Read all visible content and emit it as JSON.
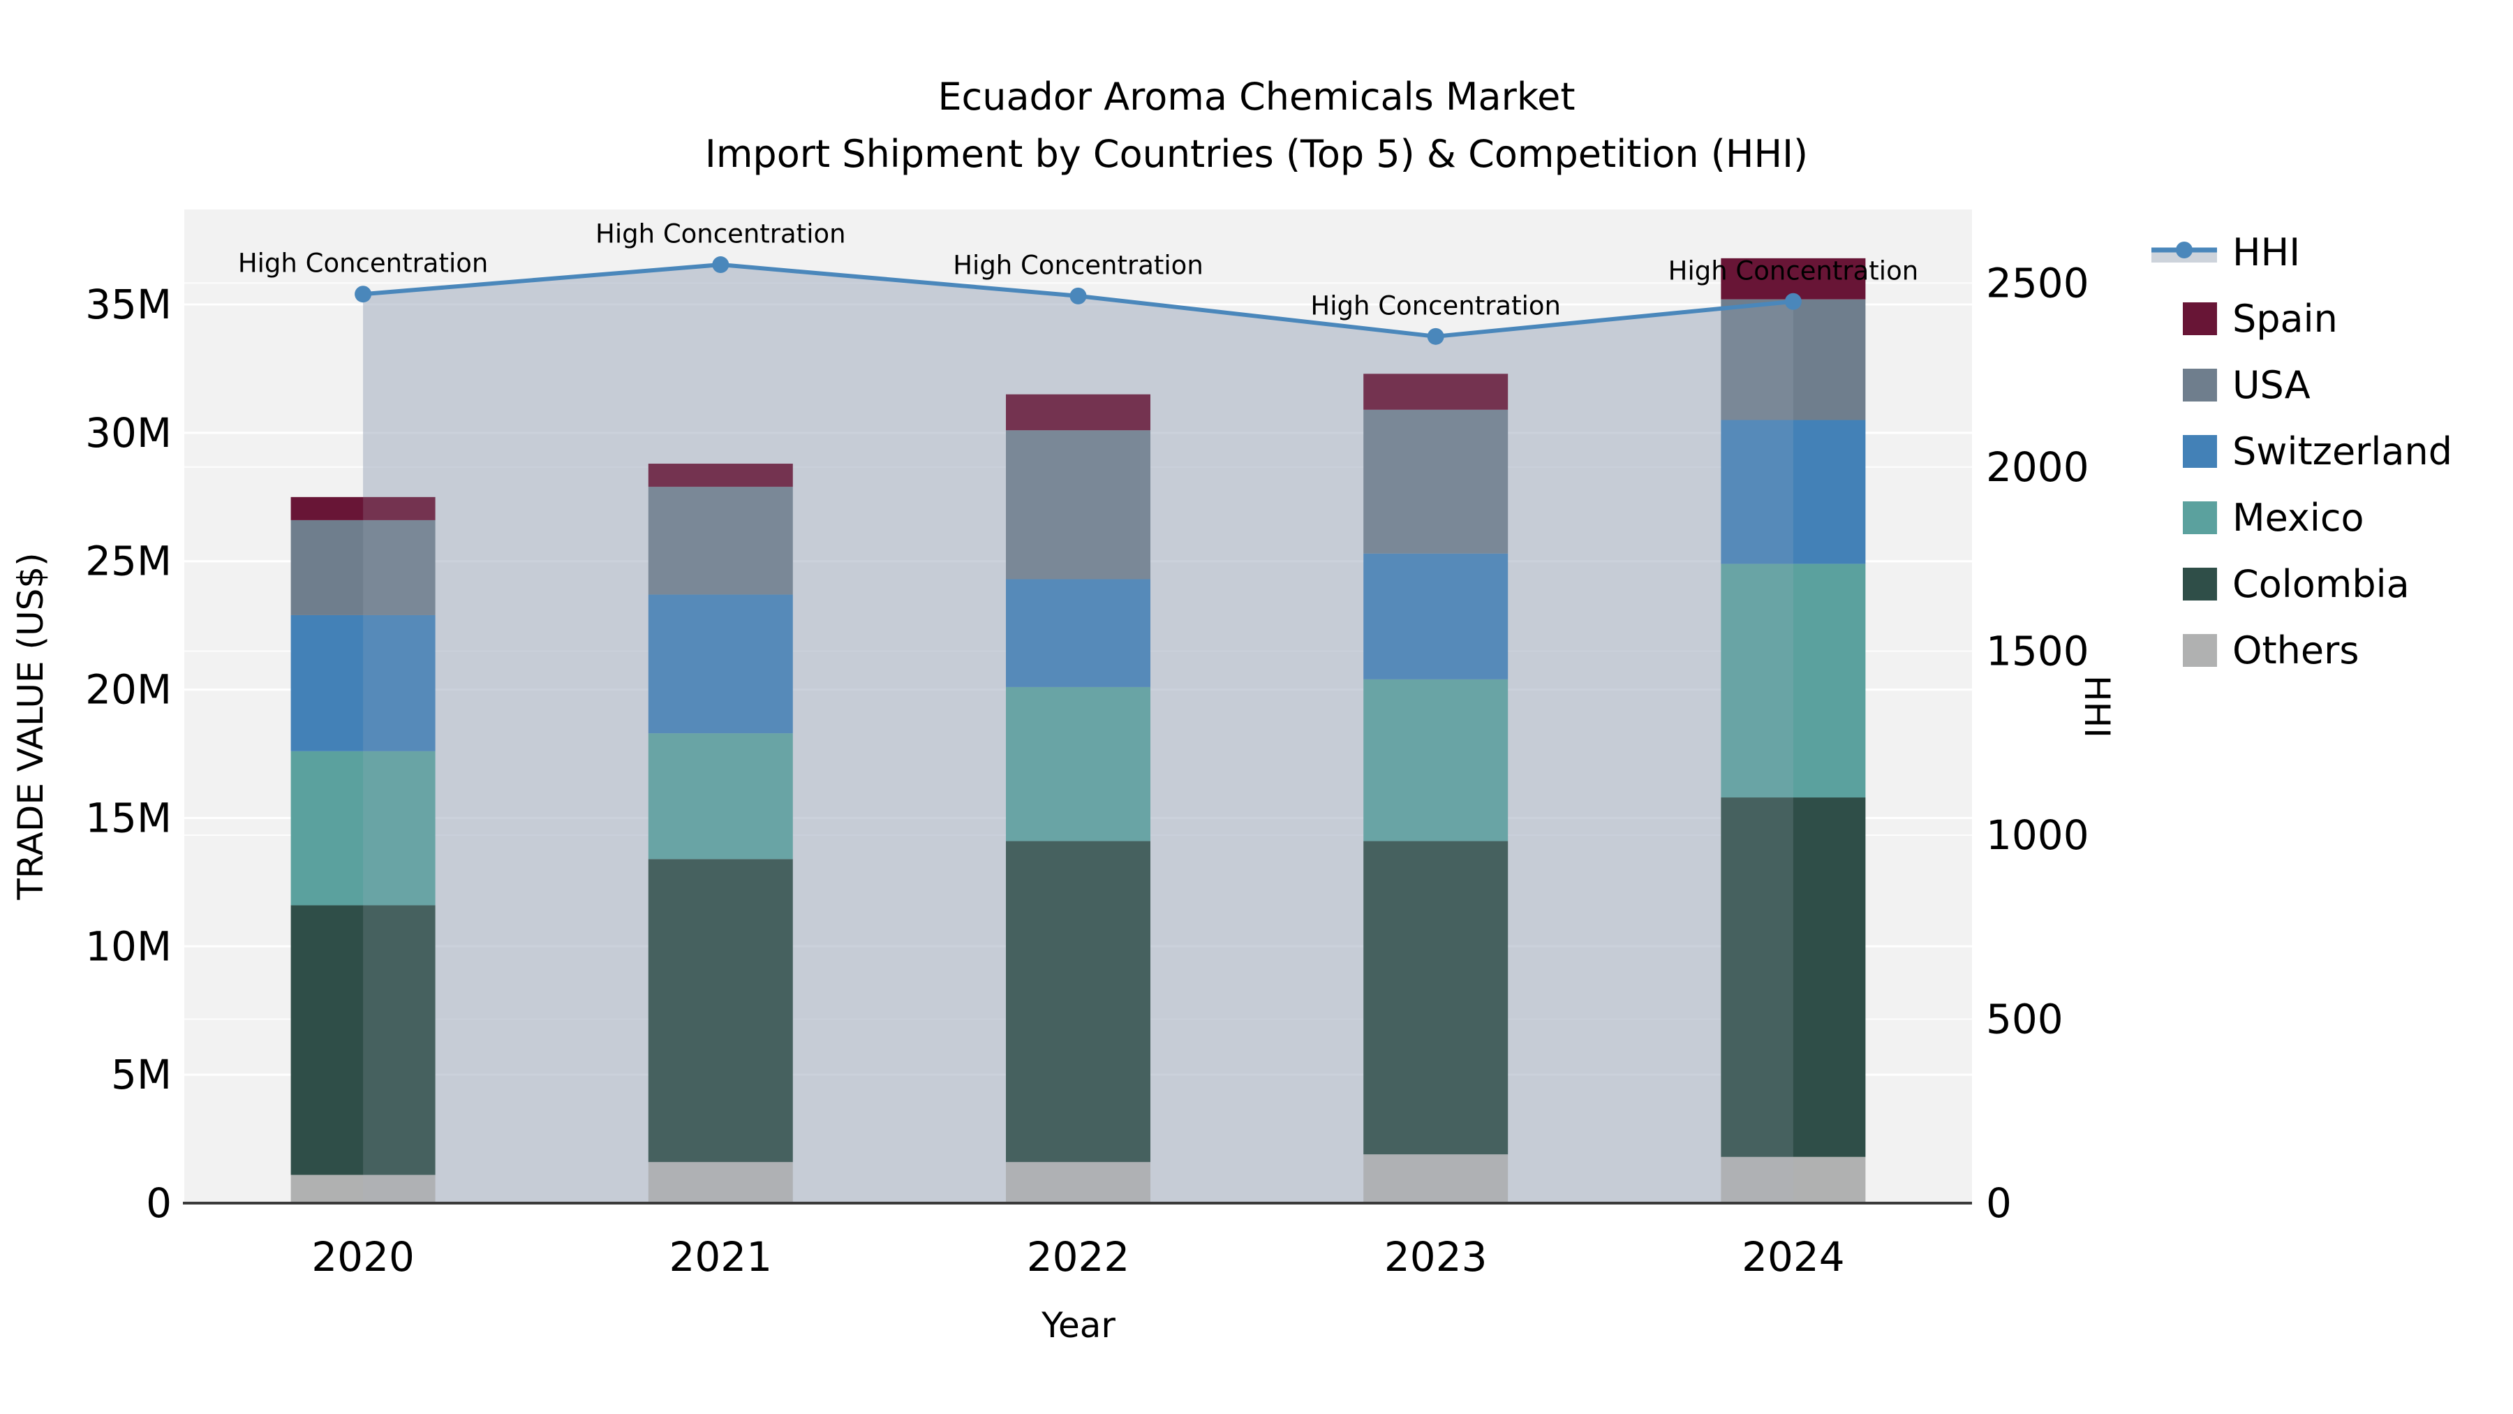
{
  "title": {
    "line1": "Ecuador Aroma Chemicals Market",
    "line2": "Import Shipment by Countries (Top 5) & Competition (HHI)"
  },
  "axes": {
    "x_label": "Year",
    "y_left_label": "TRADE VALUE (US$)",
    "y_right_label": "HHI",
    "y_left_ticks": [
      {
        "label": "0",
        "value": 0
      },
      {
        "label": "5M",
        "value": 5000000
      },
      {
        "label": "10M",
        "value": 10000000
      },
      {
        "label": "15M",
        "value": 15000000
      },
      {
        "label": "20M",
        "value": 20000000
      },
      {
        "label": "25M",
        "value": 25000000
      },
      {
        "label": "30M",
        "value": 30000000
      },
      {
        "label": "35M",
        "value": 35000000
      }
    ],
    "y_right_ticks": [
      {
        "label": "0",
        "value": 0
      },
      {
        "label": "500",
        "value": 500
      },
      {
        "label": "1000",
        "value": 1000
      },
      {
        "label": "1500",
        "value": 1500
      },
      {
        "label": "2000",
        "value": 2000
      },
      {
        "label": "2500",
        "value": 2500
      }
    ]
  },
  "legend": {
    "items": [
      {
        "label": "HHI",
        "type": "line",
        "color": "#4a87bb",
        "band_color": "#cdd3db"
      },
      {
        "label": "Spain",
        "type": "patch",
        "color": "#681536"
      },
      {
        "label": "USA",
        "type": "patch",
        "color": "#6f7e8d"
      },
      {
        "label": "Switzerland",
        "type": "patch",
        "color": "#4381b7"
      },
      {
        "label": "Mexico",
        "type": "patch",
        "color": "#5ba19e"
      },
      {
        "label": "Colombia",
        "type": "patch",
        "color": "#2f4e48"
      },
      {
        "label": "Others",
        "type": "patch",
        "color": "#b0b1b1"
      }
    ]
  },
  "colors": {
    "plot_bg": "#f2f2f2",
    "grid": "#ffffff",
    "spine": "#3a3a3a",
    "annotation_text": "#000000"
  },
  "chart_data": {
    "type": "combo",
    "bar_type": "stacked",
    "title": "Ecuador Aroma Chemicals Market\nImport Shipment by Countries (Top 5) & Competition (HHI)",
    "xlabel": "Year",
    "ylabel_left": "TRADE VALUE (US$)",
    "ylabel_right": "HHI",
    "categories": [
      "2020",
      "2021",
      "2022",
      "2023",
      "2024"
    ],
    "bar_series": [
      {
        "name": "Others",
        "color": "#b0b1b1",
        "values": [
          1100000,
          1600000,
          1600000,
          1900000,
          1800000
        ]
      },
      {
        "name": "Colombia",
        "color": "#2f4e48",
        "values": [
          10500000,
          11800000,
          12500000,
          12200000,
          14000000
        ]
      },
      {
        "name": "Mexico",
        "color": "#5ba19e",
        "values": [
          6000000,
          4900000,
          6000000,
          6300000,
          9100000
        ]
      },
      {
        "name": "Switzerland",
        "color": "#4381b7",
        "values": [
          5300000,
          5400000,
          4200000,
          4900000,
          5600000
        ]
      },
      {
        "name": "USA",
        "color": "#6f7e8d",
        "values": [
          3700000,
          4200000,
          5800000,
          5600000,
          4700000
        ]
      },
      {
        "name": "Spain",
        "color": "#681536",
        "values": [
          900000,
          900000,
          1400000,
          1400000,
          1600000
        ]
      }
    ],
    "bar_totals": [
      27500000,
      28800000,
      31500000,
      32300000,
      36800000
    ],
    "line_series": {
      "name": "HHI",
      "axis": "right",
      "color": "#4a87bb",
      "area_fill": "#aab5c6",
      "area_under_opacity": 0.52,
      "area_over_opacity": 0.19,
      "values": [
        2470,
        2550,
        2465,
        2355,
        2450
      ]
    },
    "annotations": [
      {
        "x": "2020",
        "text": "High Concentration"
      },
      {
        "x": "2021",
        "text": "High Concentration"
      },
      {
        "x": "2022",
        "text": "High Concentration"
      },
      {
        "x": "2023",
        "text": "High Concentration"
      },
      {
        "x": "2024",
        "text": "High Concentration"
      }
    ],
    "ylim_left": [
      0,
      38700000
    ],
    "ylim_right": [
      0,
      2700
    ],
    "grid": true,
    "legend_position": "right"
  }
}
